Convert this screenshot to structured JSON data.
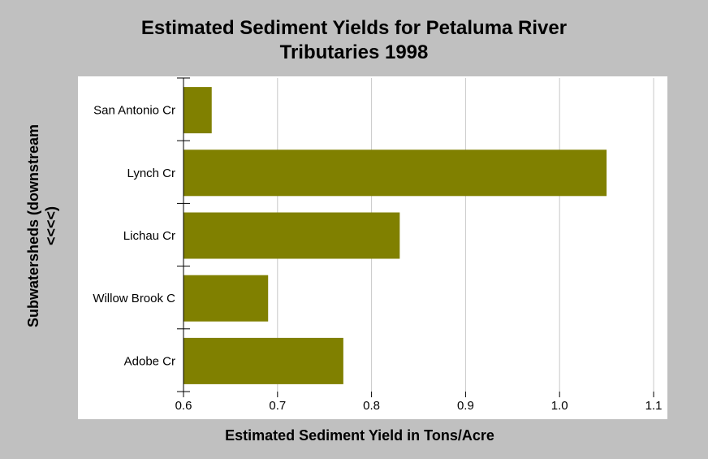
{
  "chart_data": {
    "type": "bar",
    "orientation": "horizontal",
    "title": [
      "Estimated Sediment Yields for Petaluma River",
      "Tributaries 1998"
    ],
    "xlabel": "Estimated Sediment Yield in Tons/Acre",
    "ylabel": [
      "Subwatersheds (downstream",
      "<<<<)"
    ],
    "categories": [
      "San Antonio Cr",
      "Lynch Cr",
      "Lichau Cr",
      "Willow Brook C",
      "Adobe Cr"
    ],
    "values": [
      0.63,
      1.05,
      0.83,
      0.69,
      0.77
    ],
    "xlim": [
      0.6,
      1.1
    ],
    "xticks": [
      "0.6",
      "0.7",
      "0.8",
      "0.9",
      "1.0",
      "1.1"
    ],
    "grid": "vertical",
    "bar_color": "#808000",
    "legend": "none"
  }
}
